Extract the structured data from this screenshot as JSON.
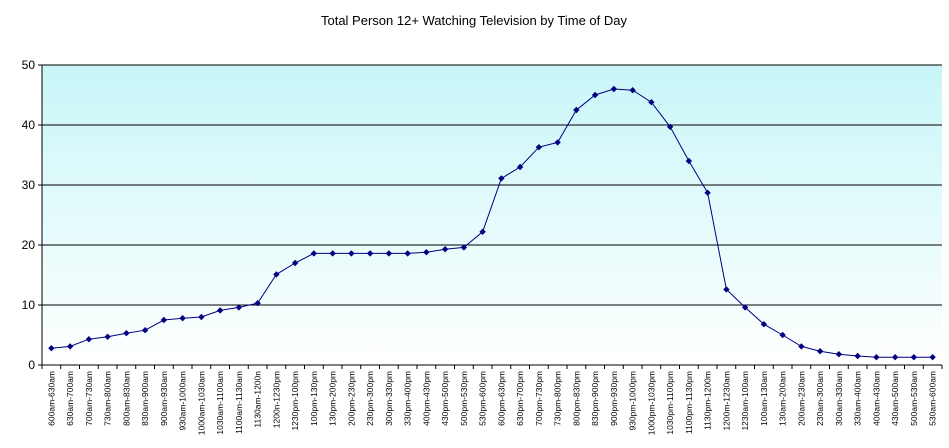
{
  "chart_data": {
    "type": "line",
    "title": "Total Person 12+ Watching Television by Time of Day",
    "xlabel": "",
    "ylabel": "",
    "ylim": [
      0,
      50
    ],
    "yticks": [
      0,
      10,
      20,
      30,
      40,
      50
    ],
    "grid": true,
    "legend": "none",
    "colors": {
      "line": "#000080",
      "marker": "#000080",
      "plot_top": "#c8f6f8",
      "plot_bottom": "#ffffff",
      "gridline": "#000000"
    },
    "categories": [
      "600am-630am",
      "630am-700am",
      "700am-730am",
      "730am-800am",
      "800am-830am",
      "830am-900am",
      "900am-930am",
      "930am-1000am",
      "1000am-1030am",
      "1030am-1100am",
      "1100am-1130am",
      "1130am-1200n",
      "1200n-1230pm",
      "1230pm-100pm",
      "100pm-130pm",
      "130pm-200pm",
      "200pm-230pm",
      "230pm-300pm",
      "300pm-330pm",
      "330pm-400pm",
      "400pm-430pm",
      "430pm-500pm",
      "500pm-530pm",
      "530pm-600pm",
      "600pm-630pm",
      "630pm-700pm",
      "700pm-730pm",
      "730pm-800pm",
      "800pm-830pm",
      "830pm-900pm",
      "900pm-930pm",
      "930pm-1000pm",
      "1000pm-1030pm",
      "1030pm-1100pm",
      "1100pm-1130pm",
      "1130pm-1200m",
      "1200m-1230am",
      "1230am-100am",
      "100am-130am",
      "130am-200am",
      "200am-230am",
      "230am-300am",
      "300am-330am",
      "330am-400am",
      "400am-430am",
      "430am-500am",
      "500am-530am",
      "530am-600am"
    ],
    "series": [
      {
        "values": [
          2.8,
          3.1,
          4.3,
          4.7,
          5.3,
          5.8,
          7.5,
          7.8,
          8.0,
          9.1,
          9.6,
          10.3,
          15.1,
          17.0,
          18.6,
          18.6,
          18.6,
          18.6,
          18.6,
          18.6,
          18.8,
          19.3,
          19.6,
          22.2,
          31.1,
          33.0,
          36.3,
          37.1,
          42.5,
          45.0,
          46.0,
          45.8,
          43.8,
          39.7,
          34.0,
          28.7,
          12.6,
          9.6,
          6.8,
          5.0,
          3.1,
          2.3,
          1.8,
          1.5,
          1.3,
          1.3,
          1.3,
          1.3
        ]
      }
    ]
  }
}
